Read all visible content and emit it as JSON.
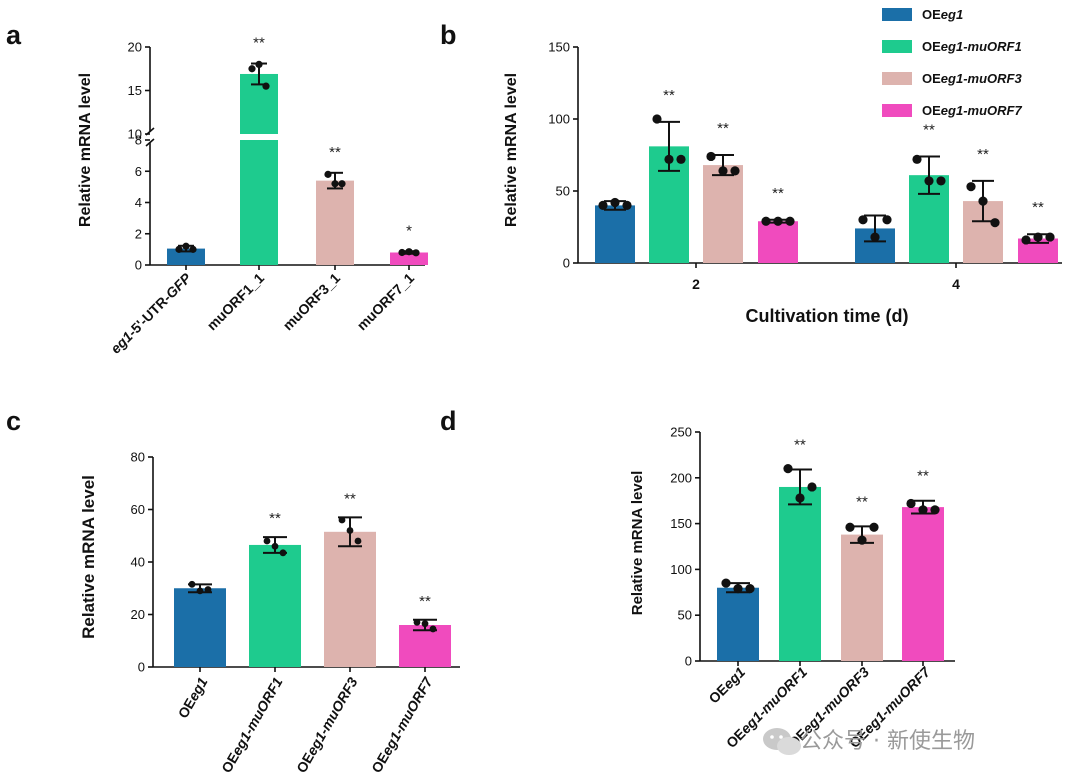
{
  "colors": {
    "eg1": "#1B6FA8",
    "muORF1": "#1ECB8E",
    "muORF3": "#DDB3AE",
    "muORF7": "#F04BBE",
    "errbar": "#111111",
    "dot": "#111111"
  },
  "chart_data": [
    {
      "panel": "a",
      "type": "bar",
      "ylabel": "Relative mRNA level",
      "y_break": {
        "lower_range": [
          0,
          8
        ],
        "upper_range": [
          10,
          20
        ]
      },
      "yticks_lower": [
        "0",
        "2",
        "4",
        "6",
        "8"
      ],
      "yticks_upper": [
        "10",
        "15",
        "20"
      ],
      "categories": [
        {
          "parts": [
            {
              "text": "eg1",
              "italic": true
            },
            {
              "text": "-5'-UTR-",
              "italic": false
            },
            {
              "text": "GFP",
              "italic": true
            }
          ]
        },
        {
          "parts": [
            {
              "text": "muORF1_1",
              "italic": false
            }
          ]
        },
        {
          "parts": [
            {
              "text": "muORF3_1",
              "italic": false
            }
          ]
        },
        {
          "parts": [
            {
              "text": "muORF7_1",
              "italic": false
            }
          ]
        }
      ],
      "series_keys": [
        "eg1",
        "muORF1",
        "muORF3",
        "muORF7"
      ],
      "values": [
        1.05,
        16.9,
        5.4,
        0.8
      ],
      "errors": [
        0.18,
        1.2,
        0.5,
        0.08
      ],
      "points": [
        [
          1.0,
          1.2,
          1.0
        ],
        [
          17.5,
          18.0,
          15.5
        ],
        [
          5.8,
          5.2,
          5.2
        ],
        [
          0.8,
          0.85,
          0.78
        ]
      ],
      "significance": [
        "",
        "**",
        "**",
        "*"
      ]
    },
    {
      "panel": "b",
      "type": "grouped_bar",
      "ylabel": "Relative mRNA level",
      "xlabel": "Cultivation time (d)",
      "ylim": [
        0,
        150
      ],
      "yticks": [
        "0",
        "50",
        "100",
        "150"
      ],
      "groups": [
        "2",
        "4"
      ],
      "series": [
        {
          "key": "eg1",
          "legend": [
            {
              "text": "OE",
              "italic": false
            },
            {
              "text": "eg1",
              "italic": true
            }
          ],
          "values": [
            40,
            24
          ],
          "errors": [
            3,
            9
          ],
          "points": [
            [
              40,
              42,
              40
            ],
            [
              30,
              18,
              30
            ]
          ],
          "significance": [
            "",
            ""
          ]
        },
        {
          "key": "muORF1",
          "legend": [
            {
              "text": "OE",
              "italic": false
            },
            {
              "text": "eg1-muORF1",
              "italic": true
            }
          ],
          "values": [
            81,
            61
          ],
          "errors": [
            17,
            13
          ],
          "points": [
            [
              100,
              72,
              72
            ],
            [
              72,
              57,
              57
            ]
          ],
          "significance": [
            "**",
            "**"
          ]
        },
        {
          "key": "muORF3",
          "legend": [
            {
              "text": "OE",
              "italic": false
            },
            {
              "text": "eg1-muORF3",
              "italic": true
            }
          ],
          "values": [
            68,
            43
          ],
          "errors": [
            7,
            14
          ],
          "points": [
            [
              74,
              64,
              64
            ],
            [
              53,
              43,
              28
            ]
          ],
          "significance": [
            "**",
            "**"
          ]
        },
        {
          "key": "muORF7",
          "legend": [
            {
              "text": "OE",
              "italic": false
            },
            {
              "text": "eg1-muORF7",
              "italic": true
            }
          ],
          "values": [
            29,
            17
          ],
          "errors": [
            1,
            3
          ],
          "points": [
            [
              29,
              29,
              29
            ],
            [
              16,
              18,
              18
            ]
          ],
          "significance": [
            "**",
            "**"
          ]
        }
      ]
    },
    {
      "panel": "c",
      "type": "bar",
      "ylabel": "Relative mRNA level",
      "ylim": [
        0,
        80
      ],
      "yticks": [
        "0",
        "20",
        "40",
        "60",
        "80"
      ],
      "categories": [
        {
          "parts": [
            {
              "text": "OE",
              "italic": false
            },
            {
              "text": "eg1",
              "italic": true
            }
          ]
        },
        {
          "parts": [
            {
              "text": "OE",
              "italic": false
            },
            {
              "text": "eg1-muORF1",
              "italic": true
            }
          ]
        },
        {
          "parts": [
            {
              "text": "OE",
              "italic": false
            },
            {
              "text": "eg1-muORF3",
              "italic": true
            }
          ]
        },
        {
          "parts": [
            {
              "text": "OE",
              "italic": false
            },
            {
              "text": "eg1-muORF7",
              "italic": true
            }
          ]
        }
      ],
      "series_keys": [
        "eg1",
        "muORF1",
        "muORF3",
        "muORF7"
      ],
      "values": [
        30,
        46.5,
        51.5,
        16
      ],
      "errors": [
        1.5,
        3,
        5.5,
        2
      ],
      "points": [
        [
          31.5,
          29,
          29.5
        ],
        [
          48,
          46,
          43.5
        ],
        [
          56,
          52,
          48
        ],
        [
          17,
          16.5,
          14.5
        ]
      ],
      "significance": [
        "",
        "**",
        "**",
        "**"
      ]
    },
    {
      "panel": "d",
      "type": "bar",
      "ylabel": "Relative mRNA level",
      "ylim": [
        0,
        250
      ],
      "yticks": [
        "0",
        "50",
        "100",
        "150",
        "200",
        "250"
      ],
      "categories": [
        {
          "parts": [
            {
              "text": "OE",
              "italic": false
            },
            {
              "text": "eg1",
              "italic": true
            }
          ]
        },
        {
          "parts": [
            {
              "text": "OE",
              "italic": false
            },
            {
              "text": "eg1-muORF1",
              "italic": true
            }
          ]
        },
        {
          "parts": [
            {
              "text": "OE",
              "italic": false
            },
            {
              "text": "eg1-muORF3",
              "italic": true
            }
          ]
        },
        {
          "parts": [
            {
              "text": "OE",
              "italic": false
            },
            {
              "text": "eg1-muORF7",
              "italic": true
            }
          ]
        }
      ],
      "series_keys": [
        "eg1",
        "muORF1",
        "muORF3",
        "muORF7"
      ],
      "values": [
        80,
        190,
        138,
        168
      ],
      "errors": [
        5,
        19,
        9,
        7
      ],
      "points": [
        [
          85,
          79,
          79
        ],
        [
          210,
          178,
          190
        ],
        [
          146,
          132,
          146
        ],
        [
          172,
          165,
          165
        ]
      ],
      "significance": [
        "",
        "**",
        "**",
        "**"
      ]
    }
  ],
  "watermark": "公众号 · 新使生物"
}
